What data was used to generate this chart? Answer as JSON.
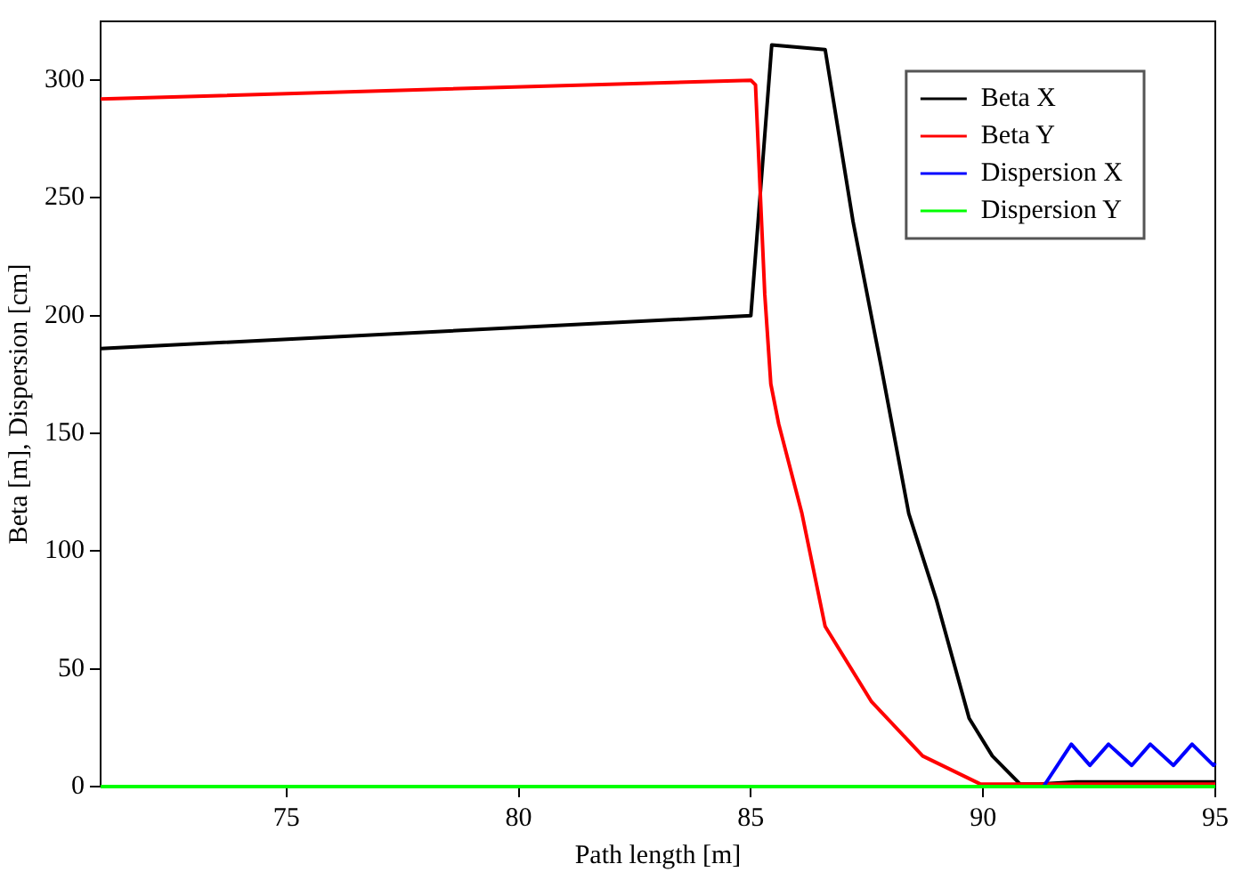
{
  "chart_data": {
    "type": "line",
    "xlabel": "Path length [m]",
    "ylabel": "Beta [m], Dispersion [cm]",
    "xlim": [
      71,
      95
    ],
    "xticks": [
      75,
      80,
      85,
      90,
      95
    ],
    "ylim": [
      0,
      325
    ],
    "yticks": [
      0,
      50,
      100,
      150,
      200,
      250,
      300
    ],
    "grid": false,
    "legend": "top right",
    "marker": "none",
    "line_style": "solid",
    "series": [
      {
        "name": "Beta X",
        "color": "#000000",
        "x": [
          71,
          85,
          85.45,
          86.6,
          87.2,
          87.8,
          88.4,
          89.0,
          89.7,
          90.2,
          90.8,
          91.2,
          92,
          93,
          94,
          95
        ],
        "values": [
          186,
          200,
          315,
          313,
          240,
          179,
          116,
          79,
          29,
          13,
          1,
          1,
          2,
          2,
          2,
          2
        ]
      },
      {
        "name": "Beta Y",
        "color": "#ff0000",
        "x": [
          71,
          85,
          85.1,
          85.3,
          85.43,
          85.6,
          86.1,
          86.6,
          87.6,
          88.7,
          89.95,
          91,
          92,
          93,
          94,
          95
        ],
        "values": [
          292,
          300,
          298,
          209,
          171,
          154,
          116,
          68,
          36,
          13,
          1,
          1,
          1,
          1,
          1,
          1
        ]
      },
      {
        "name": "Dispersion X",
        "color": "#0000ff",
        "x": [
          91.3,
          91.9,
          92.3,
          92.7,
          93.2,
          93.6,
          94.1,
          94.5,
          94.96,
          95
        ],
        "values": [
          0,
          18,
          9,
          18,
          9,
          18,
          9,
          18,
          9,
          10
        ]
      },
      {
        "name": "Dispersion Y",
        "color": "#00ff00",
        "x": [
          71,
          95
        ],
        "values": [
          0,
          0
        ]
      }
    ]
  }
}
